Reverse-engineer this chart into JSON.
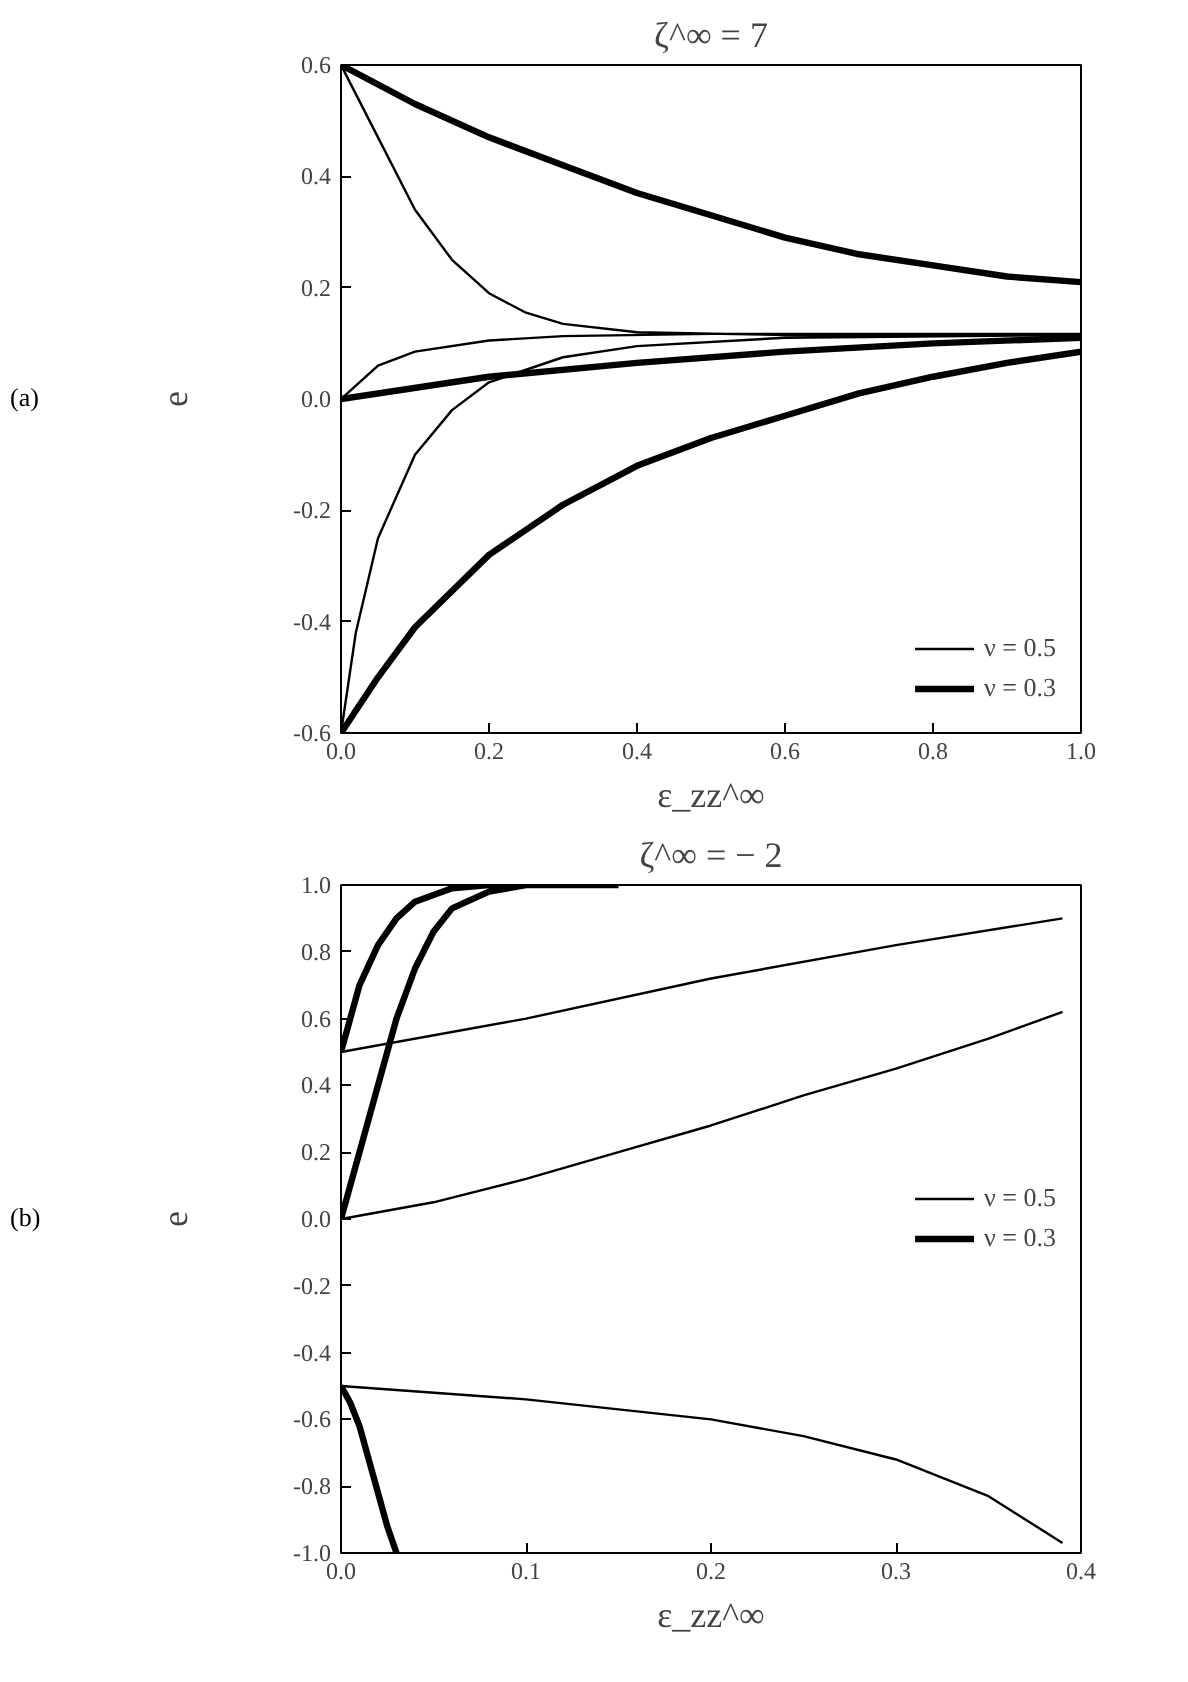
{
  "chart_data": [
    {
      "type": "line",
      "title": "ζ^∞ = 7",
      "xlabel": "ε_zz^∞",
      "ylabel": "e",
      "annotations": [
        "(a)"
      ],
      "legend": "bottom right",
      "grid": false,
      "xlim": [
        0,
        1
      ],
      "ylim": [
        -0.6,
        0.6
      ],
      "xticks": [
        {
          "value": 0,
          "label": "0.0"
        },
        {
          "value": 0.2,
          "label": "0.2"
        },
        {
          "value": 0.4,
          "label": "0.4"
        },
        {
          "value": 0.6,
          "label": "0.6"
        },
        {
          "value": 0.8,
          "label": "0.8"
        },
        {
          "value": 1,
          "label": "1.0"
        }
      ],
      "yticks": [
        {
          "value": -0.6,
          "label": "-0.6"
        },
        {
          "value": -0.4,
          "label": "-0.4"
        },
        {
          "value": -0.2,
          "label": "-0.2"
        },
        {
          "value": 0,
          "label": "0.0"
        },
        {
          "value": 0.2,
          "label": "0.2"
        },
        {
          "value": 0.4,
          "label": "0.4"
        },
        {
          "value": 0.6,
          "label": "0.6"
        }
      ],
      "series": [
        {
          "name": "ν = 0.5",
          "color": "#000000",
          "x": [
            0,
            0.05,
            0.1,
            0.15,
            0.2,
            0.25,
            0.3,
            0.4,
            0.6,
            1.0,
            null,
            0,
            0.05,
            0.1,
            0.2,
            0.3,
            0.5,
            1.0,
            null,
            0,
            0.02,
            0.05,
            0.1,
            0.15,
            0.2,
            0.3,
            0.4,
            0.6,
            1.0
          ],
          "values": [
            0.6,
            0.47,
            0.34,
            0.25,
            0.19,
            0.155,
            0.135,
            0.12,
            0.115,
            0.115,
            null,
            0,
            0.06,
            0.085,
            0.105,
            0.113,
            0.117,
            0.117,
            null,
            -0.6,
            -0.42,
            -0.25,
            -0.1,
            -0.02,
            0.03,
            0.075,
            0.095,
            0.11,
            0.115
          ]
        },
        {
          "name": "ν = 0.3",
          "color": "#000000",
          "x": [
            0,
            0.1,
            0.2,
            0.3,
            0.4,
            0.5,
            0.6,
            0.7,
            0.8,
            0.9,
            1.0,
            null,
            0,
            0.2,
            0.4,
            0.6,
            0.8,
            1.0,
            null,
            0,
            0.05,
            0.1,
            0.2,
            0.3,
            0.4,
            0.5,
            0.6,
            0.7,
            0.8,
            0.9,
            1.0
          ],
          "values": [
            0.6,
            0.53,
            0.47,
            0.42,
            0.37,
            0.33,
            0.29,
            0.26,
            0.24,
            0.22,
            0.21,
            null,
            0,
            0.04,
            0.065,
            0.085,
            0.1,
            0.11,
            null,
            -0.6,
            -0.5,
            -0.41,
            -0.28,
            -0.19,
            -0.12,
            -0.07,
            -0.03,
            0.01,
            0.04,
            0.065,
            0.085
          ]
        }
      ]
    },
    {
      "type": "line",
      "title": "ζ^∞ = − 2",
      "xlabel": "ε_zz^∞",
      "ylabel": "e",
      "annotations": [
        "(b)"
      ],
      "legend": "right",
      "grid": false,
      "xlim": [
        0,
        0.4
      ],
      "ylim": [
        -1,
        1
      ],
      "xticks": [
        {
          "value": 0,
          "label": "0.0"
        },
        {
          "value": 0.1,
          "label": "0.1"
        },
        {
          "value": 0.2,
          "label": "0.2"
        },
        {
          "value": 0.3,
          "label": "0.3"
        },
        {
          "value": 0.4,
          "label": "0.4"
        }
      ],
      "yticks": [
        {
          "value": -1,
          "label": "-1.0"
        },
        {
          "value": -0.8,
          "label": "-0.8"
        },
        {
          "value": -0.6,
          "label": "-0.6"
        },
        {
          "value": -0.4,
          "label": "-0.4"
        },
        {
          "value": -0.2,
          "label": "-0.2"
        },
        {
          "value": 0,
          "label": "0.0"
        },
        {
          "value": 0.2,
          "label": "0.2"
        },
        {
          "value": 0.4,
          "label": "0.4"
        },
        {
          "value": 0.6,
          "label": "0.6"
        },
        {
          "value": 0.8,
          "label": "0.8"
        },
        {
          "value": 1,
          "label": "1.0"
        }
      ],
      "series": [
        {
          "name": "ν = 0.5",
          "color": "#000000",
          "x": [
            0,
            0.1,
            0.2,
            0.3,
            0.39,
            null,
            0,
            0.05,
            0.1,
            0.15,
            0.2,
            0.25,
            0.3,
            0.35,
            0.39,
            null,
            0,
            0.1,
            0.2,
            0.25,
            0.3,
            0.35,
            0.39
          ],
          "values": [
            0.5,
            0.6,
            0.72,
            0.82,
            0.9,
            null,
            0,
            0.05,
            0.12,
            0.2,
            0.28,
            0.37,
            0.45,
            0.54,
            0.62,
            null,
            -0.5,
            -0.54,
            -0.6,
            -0.65,
            -0.72,
            -0.83,
            -0.97
          ]
        },
        {
          "name": "ν = 0.3",
          "color": "#000000",
          "x": [
            0,
            0.005,
            0.01,
            0.02,
            0.03,
            0.04,
            0.06,
            0.08,
            0.1,
            null,
            0,
            0.01,
            0.02,
            0.03,
            0.04,
            0.05,
            0.06,
            0.08,
            0.1,
            0.15,
            null,
            0,
            0.005,
            0.01,
            0.015,
            0.02,
            0.025,
            0.03
          ],
          "values": [
            0.5,
            0.6,
            0.7,
            0.82,
            0.9,
            0.95,
            0.99,
            1.0,
            1.0,
            null,
            0,
            0.2,
            0.4,
            0.6,
            0.75,
            0.86,
            0.93,
            0.98,
            1.0,
            1.0,
            null,
            -0.5,
            -0.55,
            -0.62,
            -0.72,
            -0.82,
            -0.92,
            -1.0
          ]
        }
      ]
    }
  ]
}
